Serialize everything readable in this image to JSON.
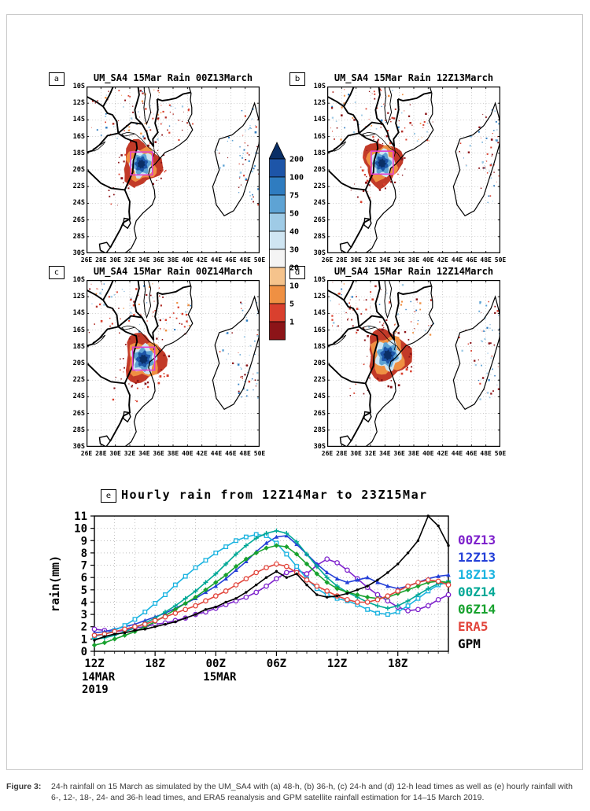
{
  "figure": {
    "caption_label": "Figure 3:",
    "caption_text": "24-h rainfall on 15 March as simulated by the UM_SA4 with (a) 48-h, (b) 36-h, (c) 24-h and (d) 12-h lead times as well as (e) hourly rainfall with 6-, 12-, 18-, 24- and 36-h lead times, and ERA5 reanalysis and GPM satellite rainfall estimation for 14–15 March 2019."
  },
  "maps": {
    "panels": [
      {
        "letter": "a",
        "title": "UM_SA4 15Mar Rain 00Z13March",
        "domain_box": true,
        "storm_lon": 33.6,
        "storm_lat": 19.3,
        "storm_scale": 1.0
      },
      {
        "letter": "b",
        "title": "UM_SA4 15Mar Rain 12Z13March",
        "domain_box": true,
        "storm_lon": 33.6,
        "storm_lat": 19.2,
        "storm_scale": 1.0
      },
      {
        "letter": "c",
        "title": "UM_SA4 15Mar Rain 00Z14March",
        "domain_box": true,
        "storm_lon": 33.9,
        "storm_lat": 19.5,
        "storm_scale": 1.08
      },
      {
        "letter": "d",
        "title": "UM_SA4 15Mar Rain 12Z14March",
        "domain_box": false,
        "storm_lon": 34.4,
        "storm_lat": 19.0,
        "storm_scale": 1.12
      }
    ],
    "lat_tick_labels": [
      "10S",
      "12S",
      "14S",
      "16S",
      "18S",
      "20S",
      "22S",
      "24S",
      "26S",
      "28S",
      "30S"
    ],
    "lon_tick_labels": [
      "26E",
      "28E",
      "30E",
      "32E",
      "34E",
      "36E",
      "38E",
      "40E",
      "42E",
      "44E",
      "46E",
      "48E",
      "50E"
    ],
    "colorbar": {
      "tick_labels": [
        "200",
        "100",
        "75",
        "50",
        "40",
        "30",
        "20",
        "10",
        "5",
        "1"
      ],
      "arrow_color": "#0a2f66",
      "segment_colors": [
        "#1d55a8",
        "#2f7cc0",
        "#5ea3d4",
        "#9fcbe6",
        "#cfe5f2",
        "#f4f4f4",
        "#f5c38c",
        "#ef9043",
        "#d9402e",
        "#8c1418"
      ]
    }
  },
  "chart_data": {
    "type": "line",
    "panel_letter": "e",
    "title": "Hourly rain from 12Z14Mar to 23Z15Mar",
    "ylabel": "rain(mm)",
    "ylim": [
      0,
      11
    ],
    "yticks": [
      0,
      1,
      2,
      3,
      4,
      5,
      6,
      7,
      8,
      9,
      10,
      11
    ],
    "x_start_hour": 0,
    "x_end_hour": 35,
    "xticks": [
      {
        "hour": 0,
        "label": "12Z",
        "sublabels": [
          "14MAR",
          "2019"
        ]
      },
      {
        "hour": 6,
        "label": "18Z",
        "sublabels": []
      },
      {
        "hour": 12,
        "label": "00Z",
        "sublabels": [
          "15MAR"
        ]
      },
      {
        "hour": 18,
        "label": "06Z",
        "sublabels": []
      },
      {
        "hour": 24,
        "label": "12Z",
        "sublabels": []
      },
      {
        "hour": 30,
        "label": "18Z",
        "sublabels": []
      }
    ],
    "grid": true,
    "legend_position": "right",
    "series": [
      {
        "name": "00Z13",
        "color": "#7e22cc",
        "marker": "circle",
        "values": [
          1.8,
          1.7,
          1.6,
          1.7,
          1.9,
          2.0,
          2.2,
          2.3,
          2.5,
          2.7,
          3.0,
          3.2,
          3.5,
          3.8,
          4.1,
          4.4,
          4.8,
          5.3,
          5.9,
          6.4,
          6.6,
          6.3,
          7.0,
          7.5,
          7.2,
          6.6,
          5.9,
          5.2,
          4.6,
          4.1,
          3.6,
          3.3,
          3.4,
          3.7,
          4.2,
          4.6
        ]
      },
      {
        "name": "12Z13",
        "color": "#2440d8",
        "marker": "triangle",
        "values": [
          1.5,
          1.6,
          1.8,
          2.0,
          2.2,
          2.5,
          2.8,
          3.1,
          3.5,
          3.9,
          4.3,
          4.8,
          5.3,
          5.9,
          6.6,
          7.3,
          8.1,
          8.8,
          9.3,
          9.4,
          8.7,
          7.9,
          7.1,
          6.4,
          5.9,
          5.6,
          5.8,
          6.0,
          5.6,
          5.3,
          5.1,
          5.3,
          5.6,
          5.9,
          6.1,
          6.2
        ]
      },
      {
        "name": "18Z13",
        "color": "#1ab3e0",
        "marker": "square",
        "values": [
          1.2,
          1.4,
          1.7,
          2.1,
          2.6,
          3.2,
          3.9,
          4.6,
          5.4,
          6.1,
          6.8,
          7.4,
          8.0,
          8.5,
          9.0,
          9.3,
          9.5,
          9.4,
          8.8,
          7.9,
          6.9,
          5.9,
          5.1,
          4.6,
          4.3,
          4.1,
          3.8,
          3.4,
          3.1,
          3.0,
          3.2,
          3.7,
          4.3,
          4.9,
          5.4,
          5.6
        ]
      },
      {
        "name": "00Z14",
        "color": "#00a896",
        "marker": "plus",
        "values": [
          1.0,
          1.1,
          1.3,
          1.6,
          1.9,
          2.3,
          2.7,
          3.2,
          3.7,
          4.3,
          4.9,
          5.6,
          6.3,
          7.1,
          7.9,
          8.6,
          9.2,
          9.6,
          9.8,
          9.6,
          8.9,
          7.9,
          6.9,
          6.0,
          5.3,
          4.8,
          4.4,
          4.0,
          3.7,
          3.5,
          3.7,
          4.1,
          4.6,
          5.1,
          5.5,
          5.6
        ]
      },
      {
        "name": "06Z14",
        "color": "#18a22e",
        "marker": "diamond",
        "values": [
          0.5,
          0.7,
          1.0,
          1.3,
          1.6,
          2.0,
          2.4,
          2.9,
          3.4,
          3.9,
          4.4,
          5.0,
          5.6,
          6.2,
          6.9,
          7.5,
          8.0,
          8.4,
          8.6,
          8.5,
          7.9,
          7.1,
          6.3,
          5.6,
          5.1,
          4.8,
          4.6,
          4.4,
          4.3,
          4.4,
          4.7,
          5.0,
          5.3,
          5.6,
          5.7,
          5.6
        ]
      },
      {
        "name": "ERA5",
        "color": "#e2453c",
        "marker": "circle",
        "values": [
          1.3,
          1.4,
          1.6,
          1.8,
          2.0,
          2.2,
          2.5,
          2.8,
          3.1,
          3.4,
          3.7,
          4.1,
          4.5,
          4.9,
          5.4,
          5.9,
          6.4,
          6.8,
          7.1,
          6.9,
          6.4,
          5.8,
          5.3,
          4.9,
          4.5,
          4.2,
          4.0,
          4.0,
          4.2,
          4.5,
          4.9,
          5.3,
          5.6,
          5.8,
          5.7,
          5.4
        ]
      },
      {
        "name": "GPM",
        "color": "#000000",
        "marker": "dot",
        "values": [
          0.9,
          1.2,
          1.4,
          1.5,
          1.7,
          1.8,
          2.0,
          2.2,
          2.4,
          2.7,
          3.0,
          3.4,
          3.6,
          4.0,
          4.3,
          4.8,
          5.4,
          6.0,
          6.5,
          6.0,
          6.3,
          5.4,
          4.6,
          4.4,
          4.5,
          4.7,
          5.0,
          5.3,
          5.8,
          6.4,
          7.1,
          8.0,
          9.0,
          11.0,
          10.2,
          8.6
        ]
      }
    ]
  }
}
